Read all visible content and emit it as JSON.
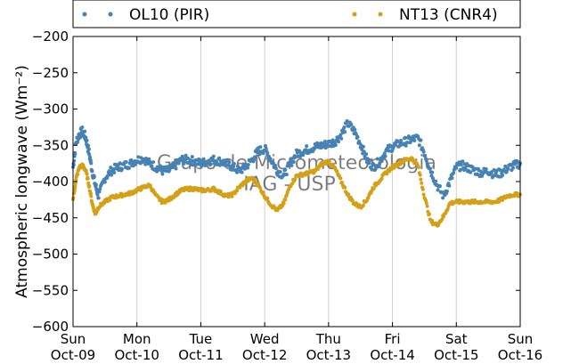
{
  "chart_data": {
    "type": "scatter",
    "title": "",
    "xlabel": "",
    "ylabel": "Atmospheric longwave (Wm⁻²)",
    "ylim": [
      -600,
      -200
    ],
    "yticks": [
      -200,
      -250,
      -300,
      -350,
      -400,
      -450,
      -500,
      -550,
      -600
    ],
    "xlim": [
      0,
      7
    ],
    "xticks": [
      {
        "x": 0,
        "day": "Sun",
        "date": "Oct-09"
      },
      {
        "x": 1,
        "day": "Mon",
        "date": "Oct-10"
      },
      {
        "x": 2,
        "day": "Tue",
        "date": "Oct-11"
      },
      {
        "x": 3,
        "day": "Wed",
        "date": "Oct-12"
      },
      {
        "x": 4,
        "day": "Thu",
        "date": "Oct-13"
      },
      {
        "x": 5,
        "day": "Fri",
        "date": "Oct-14"
      },
      {
        "x": 6,
        "day": "Sat",
        "date": "Oct-15"
      },
      {
        "x": 7,
        "day": "Sun",
        "date": "Oct-16"
      }
    ],
    "grid": "vertical",
    "legend_position": "top",
    "watermark": [
      "Grupo de Micrometeorologia",
      "IAG - USP"
    ],
    "series": [
      {
        "name": "OL10 (PIR)",
        "color": "#4682b4",
        "x": [
          0.0,
          0.05,
          0.1,
          0.15,
          0.2,
          0.25,
          0.3,
          0.35,
          0.4,
          0.5,
          0.6,
          0.7,
          0.8,
          0.9,
          1.0,
          1.1,
          1.2,
          1.3,
          1.4,
          1.5,
          1.6,
          1.7,
          1.8,
          1.9,
          2.0,
          2.1,
          2.2,
          2.3,
          2.4,
          2.5,
          2.6,
          2.7,
          2.8,
          2.9,
          3.0,
          3.1,
          3.2,
          3.3,
          3.4,
          3.5,
          3.6,
          3.7,
          3.8,
          3.9,
          4.0,
          4.1,
          4.2,
          4.3,
          4.4,
          4.5,
          4.6,
          4.7,
          4.8,
          4.9,
          5.0,
          5.1,
          5.2,
          5.3,
          5.4,
          5.5,
          5.6,
          5.7,
          5.8,
          5.9,
          6.0,
          6.1,
          6.2,
          6.3,
          6.4,
          6.5,
          6.6,
          6.7,
          6.8,
          6.9,
          7.0
        ],
        "y": [
          -380,
          -345,
          -335,
          -330,
          -340,
          -360,
          -385,
          -405,
          -420,
          -395,
          -385,
          -380,
          -378,
          -375,
          -370,
          -368,
          -375,
          -380,
          -385,
          -385,
          -378,
          -370,
          -370,
          -372,
          -375,
          -372,
          -370,
          -372,
          -375,
          -380,
          -385,
          -380,
          -370,
          -358,
          -355,
          -370,
          -385,
          -392,
          -375,
          -362,
          -358,
          -355,
          -352,
          -350,
          -348,
          -345,
          -335,
          -320,
          -330,
          -348,
          -370,
          -380,
          -372,
          -358,
          -352,
          -348,
          -345,
          -342,
          -340,
          -360,
          -385,
          -405,
          -420,
          -400,
          -380,
          -378,
          -382,
          -385,
          -388,
          -385,
          -390,
          -388,
          -382,
          -378,
          -375
        ]
      },
      {
        "name": "NT13 (CNR4)",
        "color": "#d4a017",
        "x": [
          0.0,
          0.05,
          0.1,
          0.15,
          0.2,
          0.25,
          0.3,
          0.35,
          0.4,
          0.5,
          0.6,
          0.7,
          0.8,
          0.9,
          1.0,
          1.1,
          1.2,
          1.3,
          1.4,
          1.5,
          1.6,
          1.7,
          1.8,
          1.9,
          2.0,
          2.1,
          2.2,
          2.3,
          2.4,
          2.5,
          2.6,
          2.7,
          2.8,
          2.9,
          3.0,
          3.1,
          3.2,
          3.3,
          3.4,
          3.5,
          3.6,
          3.7,
          3.8,
          3.9,
          4.0,
          4.1,
          4.2,
          4.3,
          4.4,
          4.5,
          4.6,
          4.7,
          4.8,
          4.9,
          5.0,
          5.1,
          5.2,
          5.3,
          5.4,
          5.5,
          5.6,
          5.7,
          5.8,
          5.9,
          6.0,
          6.1,
          6.2,
          6.3,
          6.4,
          6.5,
          6.6,
          6.7,
          6.8,
          6.9,
          7.0
        ],
        "y": [
          -425,
          -395,
          -380,
          -378,
          -385,
          -405,
          -430,
          -445,
          -435,
          -428,
          -422,
          -420,
          -418,
          -416,
          -412,
          -408,
          -405,
          -420,
          -428,
          -425,
          -418,
          -412,
          -410,
          -410,
          -412,
          -412,
          -410,
          -415,
          -420,
          -418,
          -408,
          -400,
          -395,
          -405,
          -420,
          -432,
          -440,
          -430,
          -405,
          -392,
          -390,
          -388,
          -385,
          -375,
          -372,
          -382,
          -400,
          -418,
          -430,
          -435,
          -425,
          -408,
          -398,
          -388,
          -380,
          -375,
          -370,
          -368,
          -378,
          -420,
          -455,
          -460,
          -448,
          -430,
          -428,
          -428,
          -428,
          -428,
          -428,
          -428,
          -428,
          -425,
          -420,
          -418,
          -418
        ]
      }
    ]
  }
}
